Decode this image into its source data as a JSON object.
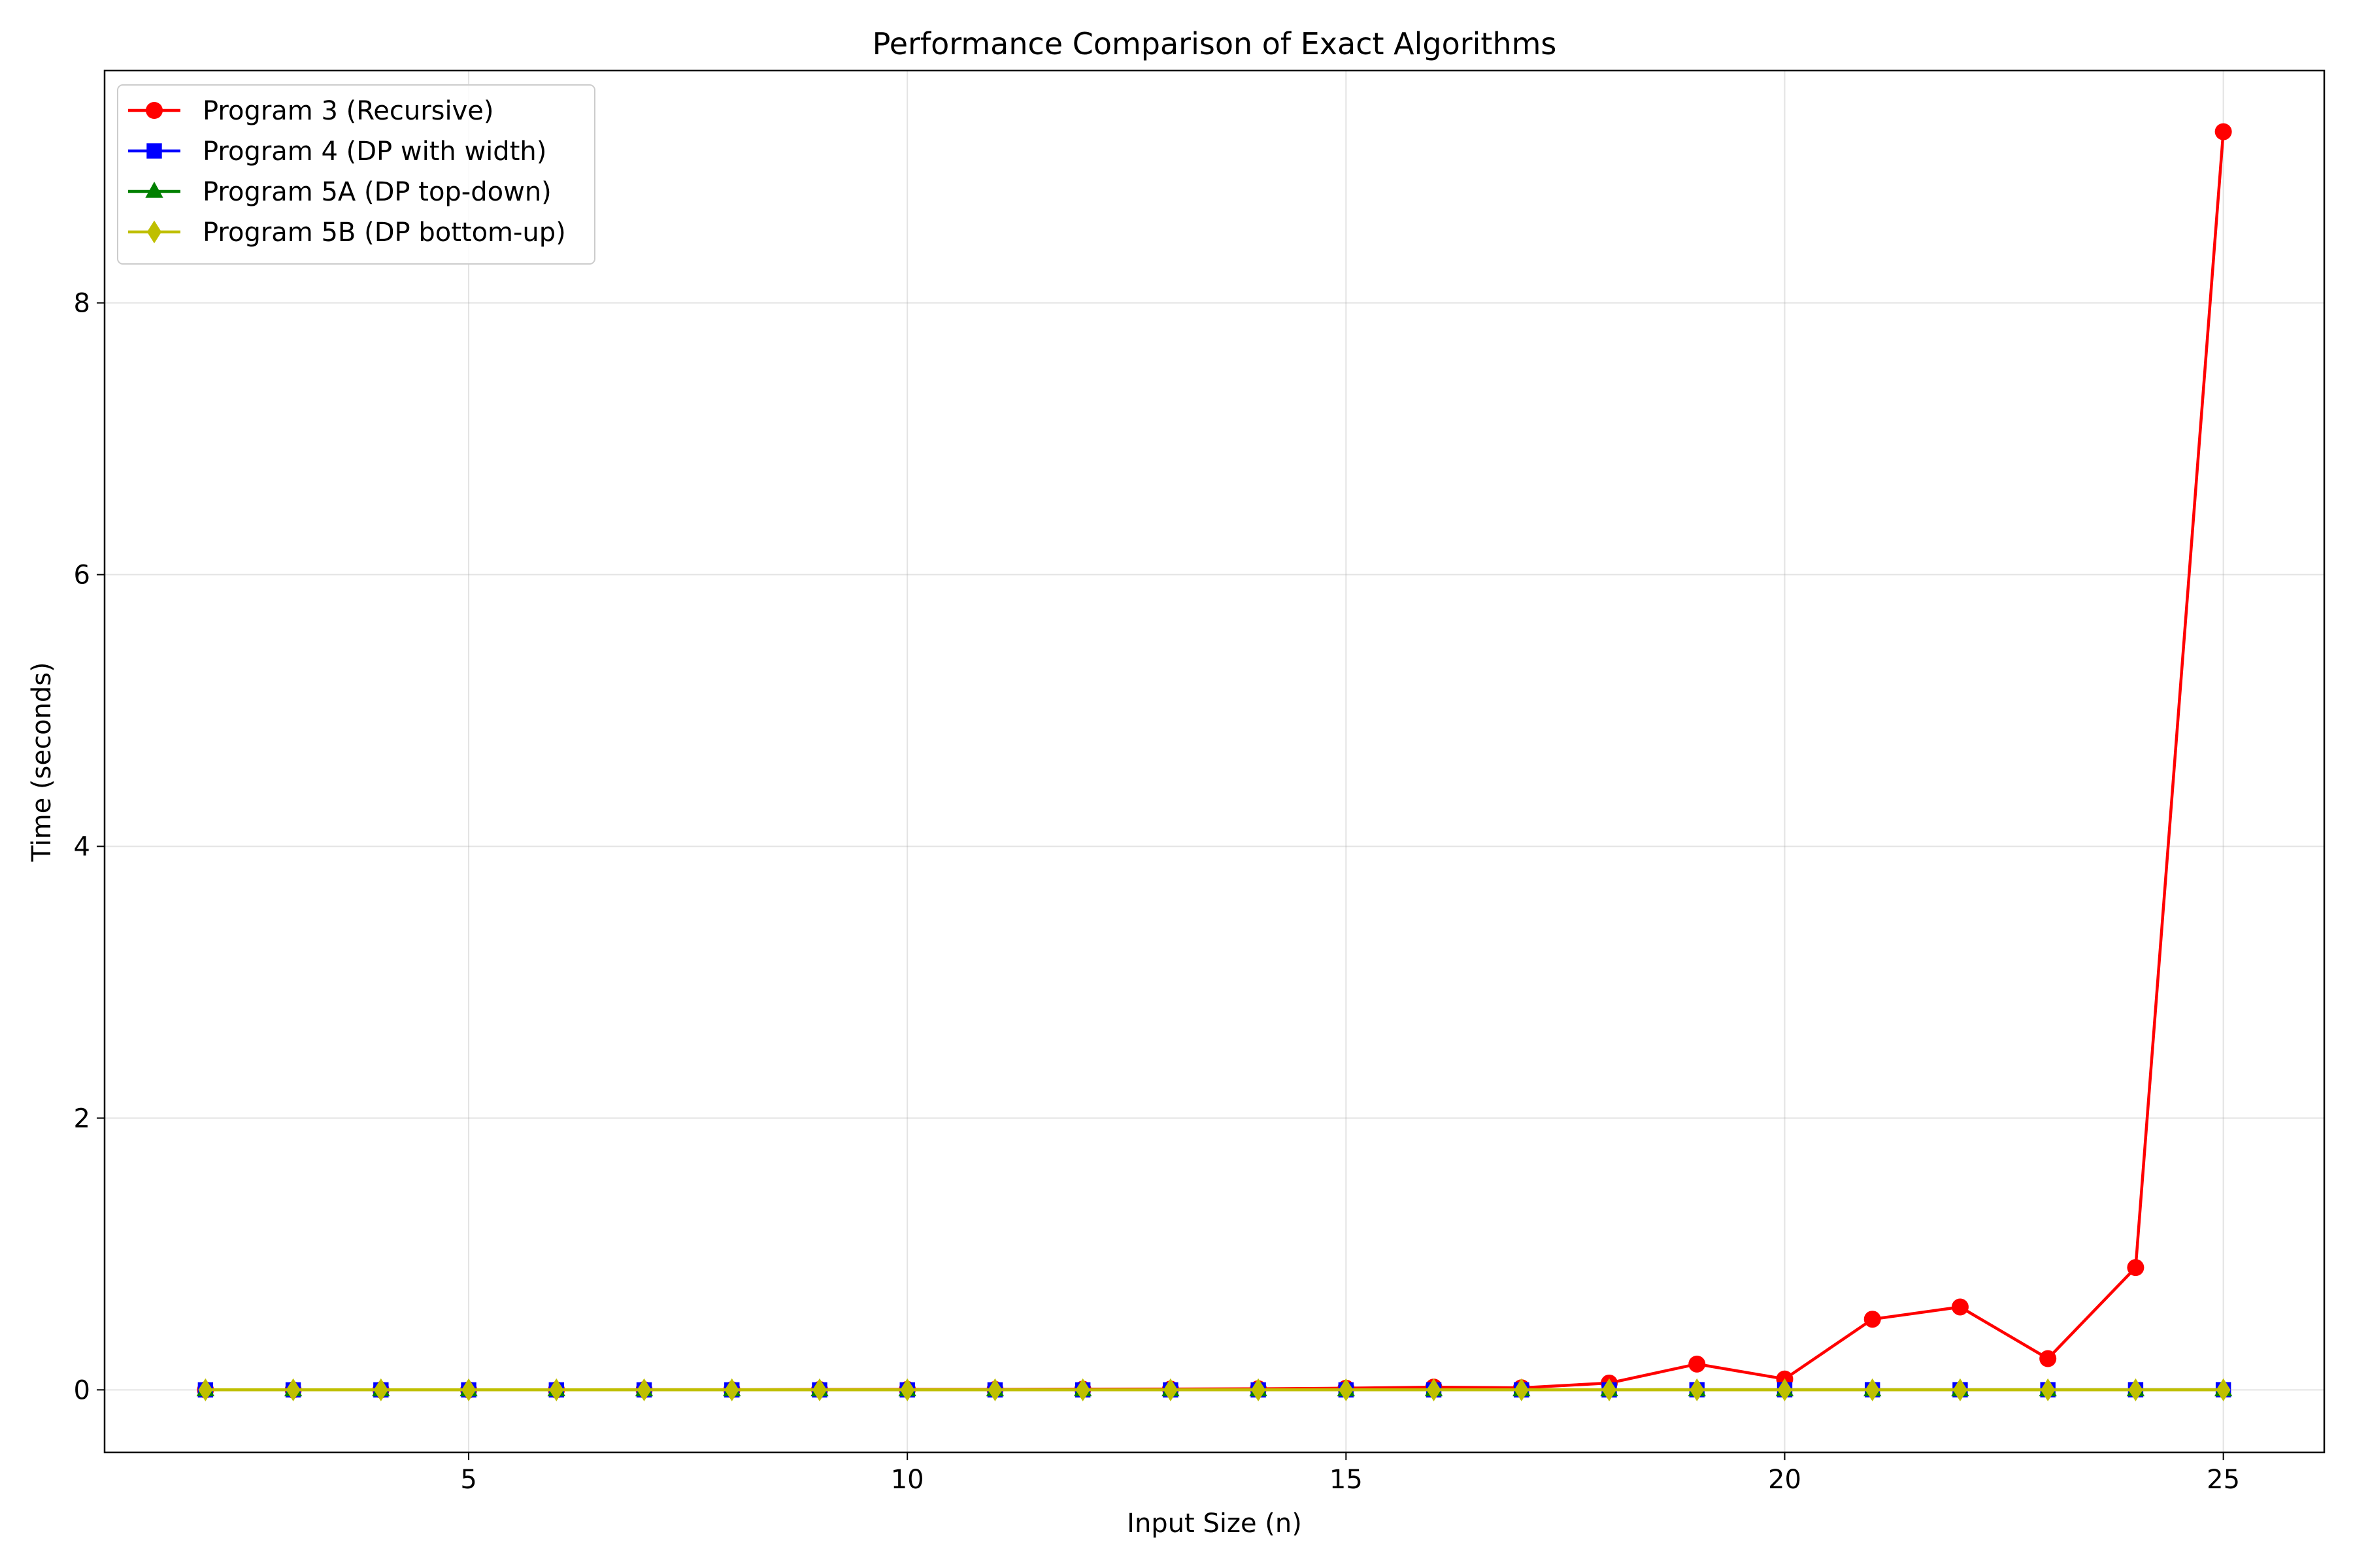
{
  "chart_data": {
    "type": "line",
    "title": "Performance Comparison of Exact Algorithms",
    "xlabel": "Input Size (n)",
    "ylabel": "Time (seconds)",
    "xlim": [
      0.85,
      26.15
    ],
    "ylim": [
      -0.46,
      9.71
    ],
    "xticks": [
      5,
      10,
      15,
      20,
      25
    ],
    "yticks": [
      0,
      2,
      4,
      6,
      8
    ],
    "grid": true,
    "legend_position": "top-left",
    "x": [
      2,
      3,
      4,
      5,
      6,
      7,
      8,
      9,
      10,
      11,
      12,
      13,
      14,
      15,
      16,
      17,
      18,
      19,
      20,
      21,
      22,
      23,
      24,
      25
    ],
    "series": [
      {
        "name": "Program 3 (Recursive)",
        "color": "#ff0000",
        "marker": "circle",
        "values": [
          0,
          0,
          0,
          0,
          0,
          0.001,
          0.001,
          0.002,
          0.003,
          0.003,
          0.005,
          0.006,
          0.008,
          0.012,
          0.02,
          0.015,
          0.05,
          0.19,
          0.08,
          0.52,
          0.61,
          0.23,
          0.9,
          9.26
        ]
      },
      {
        "name": "Program 4 (DP with width)",
        "color": "#0000ff",
        "marker": "square",
        "values": [
          0,
          0,
          0,
          0,
          0,
          0,
          0,
          0,
          0,
          0,
          0,
          0,
          0,
          0,
          0,
          0,
          0,
          0.001,
          0.001,
          0.001,
          0.001,
          0.001,
          0.001,
          0.001
        ]
      },
      {
        "name": "Program 5A (DP top-down)",
        "color": "#008000",
        "marker": "triangle",
        "values": [
          0,
          0,
          0,
          0,
          0,
          0,
          0,
          0,
          0,
          0,
          0,
          0,
          0,
          0,
          0,
          0,
          0,
          0,
          0,
          0,
          0,
          0,
          0,
          0
        ]
      },
      {
        "name": "Program 5B (DP bottom-up)",
        "color": "#bfbf00",
        "marker": "diamond",
        "values": [
          0,
          0,
          0,
          0,
          0,
          0,
          0,
          0,
          0,
          0,
          0,
          0,
          0,
          0,
          0,
          0,
          0,
          0,
          0,
          0,
          0,
          0,
          0,
          0
        ]
      }
    ]
  }
}
